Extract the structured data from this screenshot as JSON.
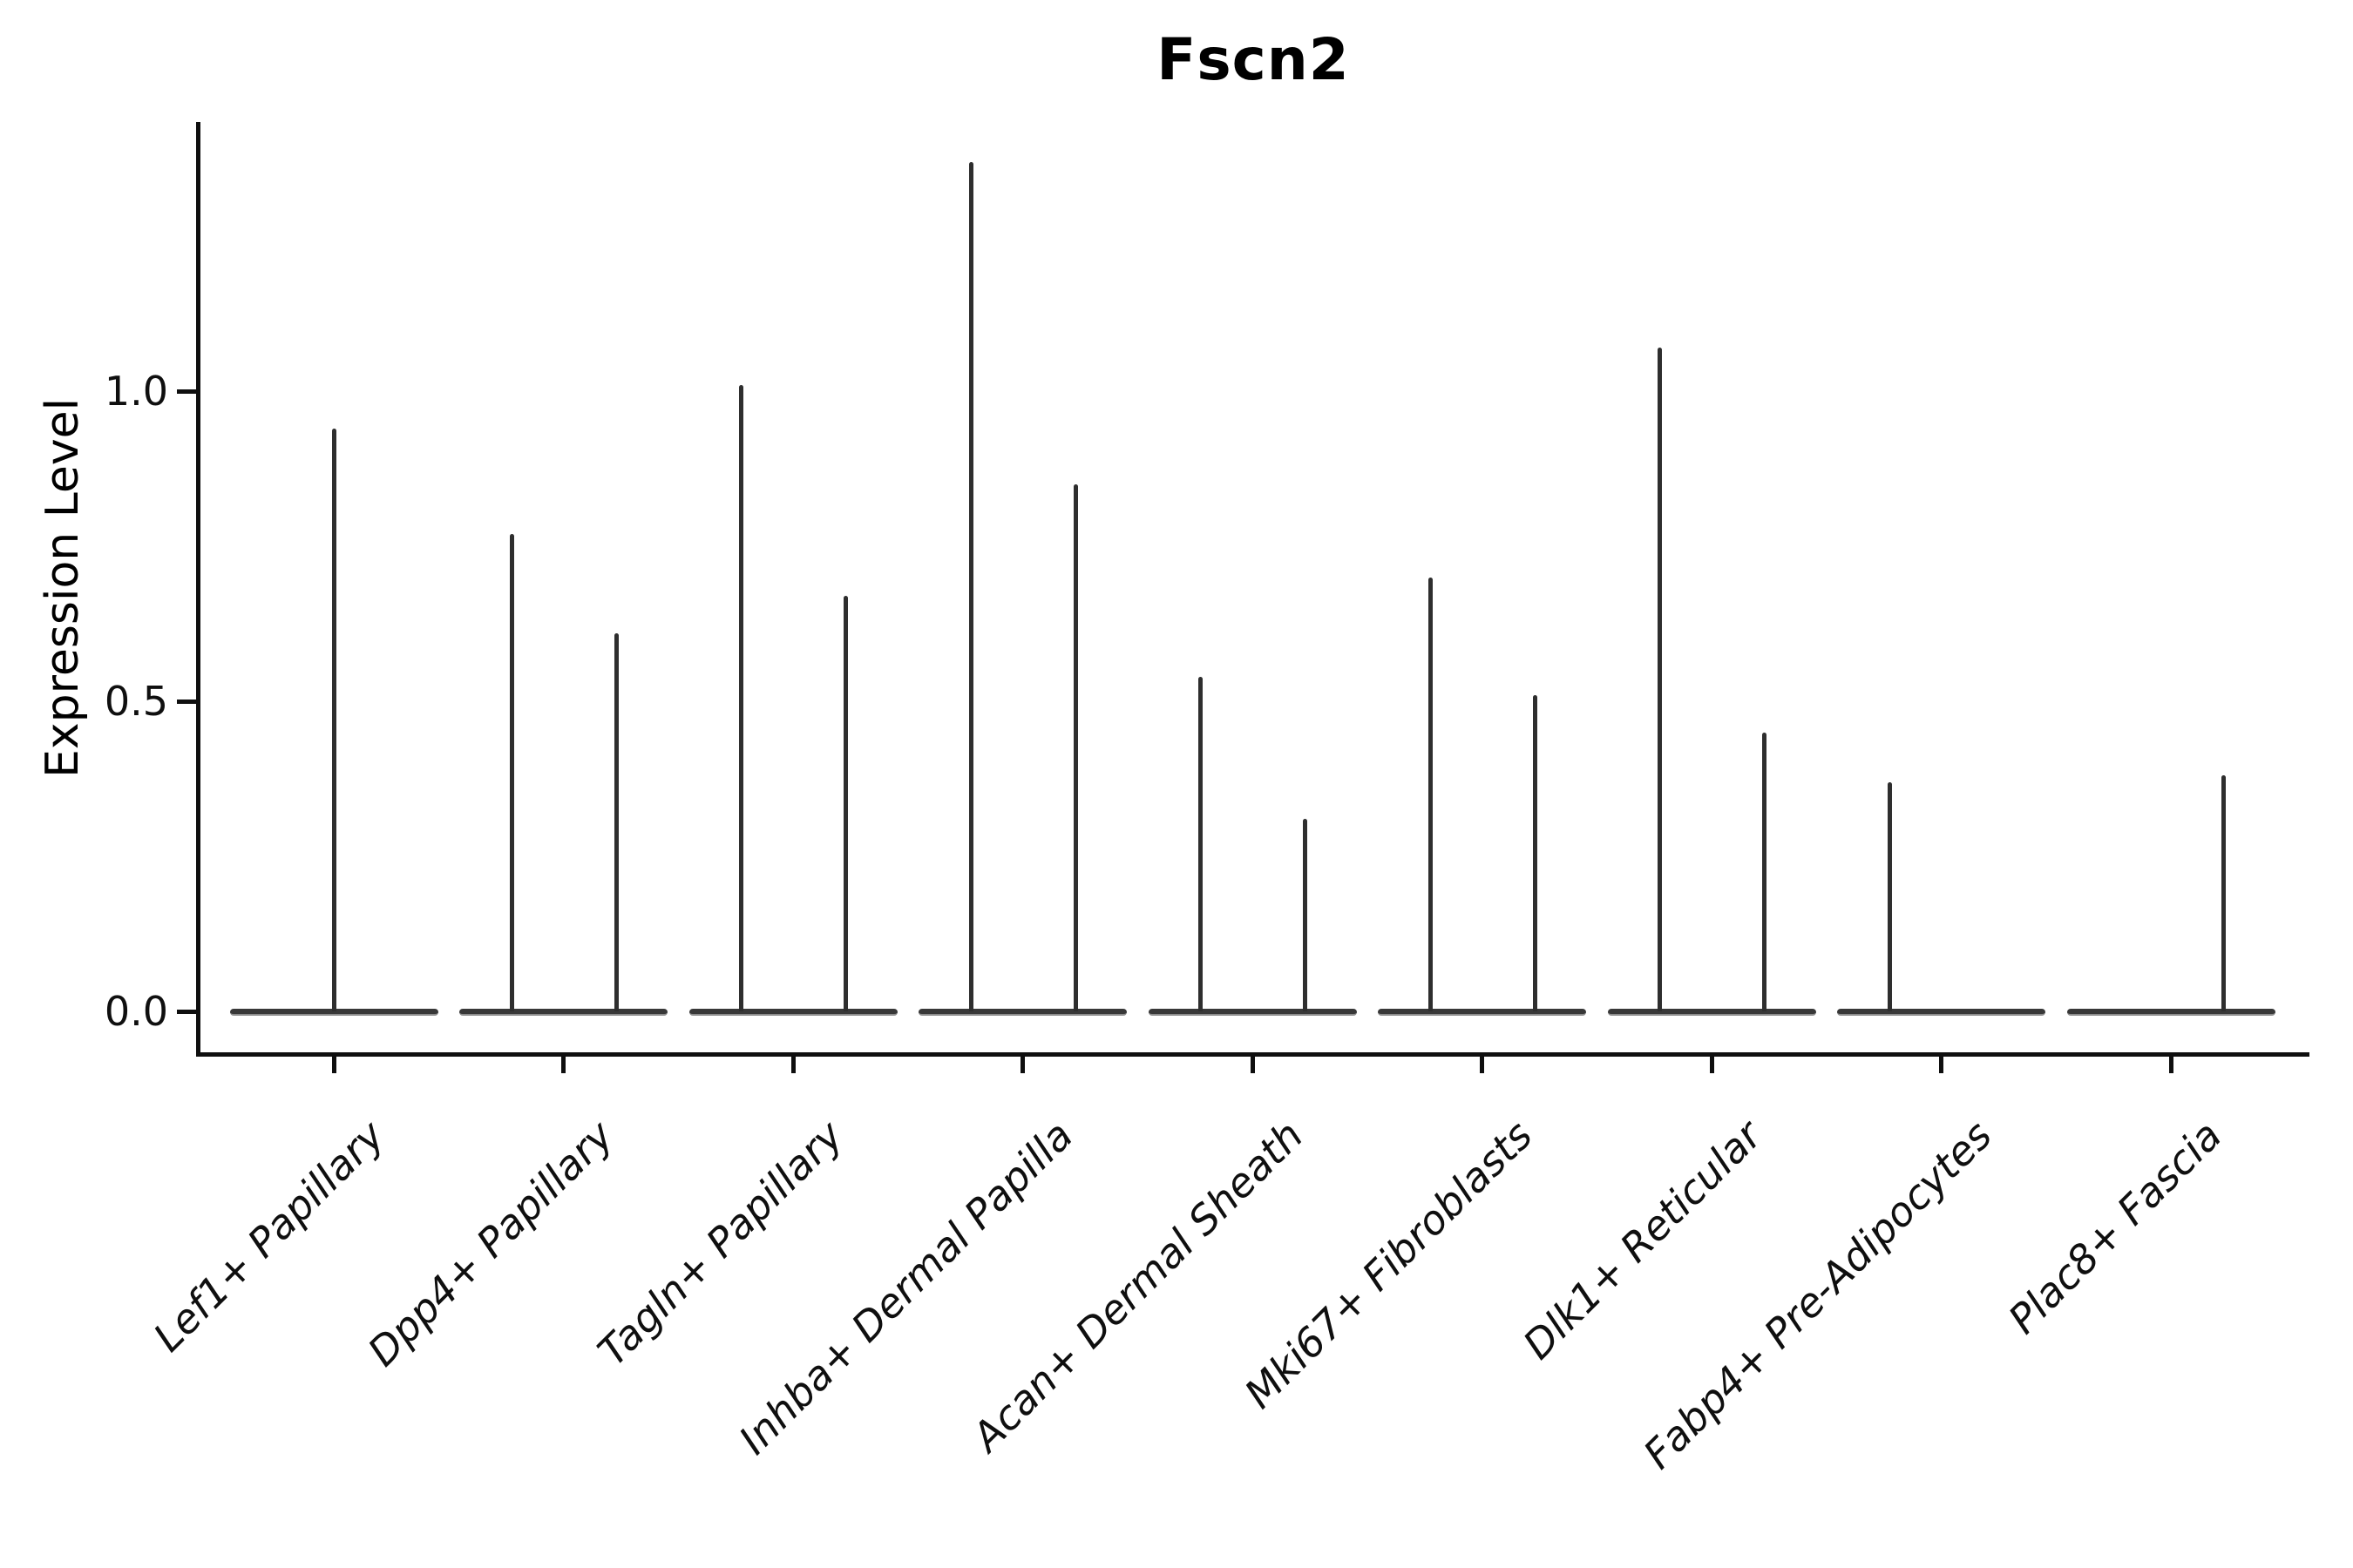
{
  "chart_data": {
    "type": "violin",
    "title": "Fscn2",
    "xlabel": "",
    "ylabel": "Expression Level",
    "ylim": [
      -0.07,
      1.43
    ],
    "grid": false,
    "legend": "none",
    "yticks": [
      {
        "value": 0.0,
        "label": "0.0"
      },
      {
        "value": 0.5,
        "label": "0.5"
      },
      {
        "value": 1.0,
        "label": "1.0"
      }
    ],
    "categories": [
      {
        "label": "Lef1+ Papillary",
        "violins": [
          {
            "position": "center",
            "max_expression": 0.94
          }
        ]
      },
      {
        "label": "Dpp4+ Papillary",
        "violins": [
          {
            "position": "left",
            "max_expression": 0.77
          },
          {
            "position": "right",
            "max_expression": 0.61
          }
        ]
      },
      {
        "label": "Tagln+ Papillary",
        "violins": [
          {
            "position": "left",
            "max_expression": 1.01
          },
          {
            "position": "right",
            "max_expression": 0.67
          }
        ]
      },
      {
        "label": "Inhba+ Dermal Papilla",
        "violins": [
          {
            "position": "left",
            "max_expression": 1.37
          },
          {
            "position": "right",
            "max_expression": 0.85
          }
        ]
      },
      {
        "label": "Acan+ Dermal Sheath",
        "violins": [
          {
            "position": "left",
            "max_expression": 0.54
          },
          {
            "position": "right",
            "max_expression": 0.31
          }
        ]
      },
      {
        "label": "Mki67+ Fibroblasts",
        "violins": [
          {
            "position": "left",
            "max_expression": 0.7
          },
          {
            "position": "right",
            "max_expression": 0.51
          }
        ]
      },
      {
        "label": "Dlk1+ Reticular",
        "violins": [
          {
            "position": "left",
            "max_expression": 1.07
          },
          {
            "position": "right",
            "max_expression": 0.45
          }
        ]
      },
      {
        "label": "Fabp4+ Pre-Adipocytes",
        "violins": [
          {
            "position": "left",
            "max_expression": 0.37
          }
        ]
      },
      {
        "label": "Plac8+ Fascia",
        "violins": [
          {
            "position": "right",
            "max_expression": 0.38
          }
        ]
      }
    ],
    "style_notes": "violins collapse to a flat band at 0 with a thin spike up to each group's max expression",
    "colors": {
      "violin_line": "#2e2e2e",
      "baseline_edge": "#8d8d8d",
      "spine": "#0f0f0f",
      "text": "#0f0f0f",
      "background": "#ffffff"
    }
  }
}
